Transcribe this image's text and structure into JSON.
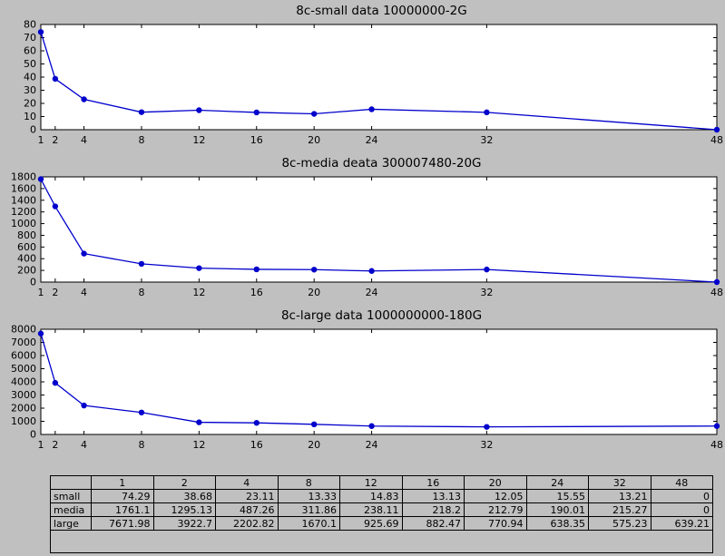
{
  "figure": {
    "bg_color": "#c0c0c0",
    "plot_bg_color": "#ffffff",
    "line_color": "#0000cc",
    "axis_color": "#000000"
  },
  "chart_data": [
    {
      "type": "line",
      "title": "8c-small data 10000000-2G",
      "x": [
        1,
        2,
        4,
        8,
        12,
        16,
        20,
        24,
        32,
        48
      ],
      "values": [
        74.29,
        38.68,
        23.11,
        13.33,
        14.83,
        13.13,
        12.05,
        15.55,
        13.21,
        0
      ],
      "xlim": [
        1,
        48
      ],
      "ylim": [
        0,
        80
      ],
      "ytick_step": 10,
      "xticks": [
        1,
        2,
        4,
        8,
        12,
        16,
        20,
        24,
        32,
        48
      ],
      "grid": false,
      "legend": "none"
    },
    {
      "type": "line",
      "title": "8c-media deata 300007480-20G",
      "x": [
        1,
        2,
        4,
        8,
        12,
        16,
        20,
        24,
        32,
        48
      ],
      "values": [
        1761.1,
        1295.13,
        487.26,
        311.86,
        238.11,
        218.2,
        212.79,
        190.01,
        215.27,
        0
      ],
      "xlim": [
        1,
        48
      ],
      "ylim": [
        0,
        1800
      ],
      "ytick_step": 200,
      "xticks": [
        1,
        2,
        4,
        8,
        12,
        16,
        20,
        24,
        32,
        48
      ],
      "grid": false,
      "legend": "none"
    },
    {
      "type": "line",
      "title": "8c-large data 1000000000-180G",
      "x": [
        1,
        2,
        4,
        8,
        12,
        16,
        20,
        24,
        32,
        48
      ],
      "values": [
        7671.98,
        3922.7,
        2202.82,
        1670.1,
        925.69,
        882.47,
        770.94,
        638.35,
        575.23,
        639.21
      ],
      "xlim": [
        1,
        48
      ],
      "ylim": [
        0,
        8000
      ],
      "ytick_step": 1000,
      "xticks": [
        1,
        2,
        4,
        8,
        12,
        16,
        20,
        24,
        32,
        48
      ],
      "grid": false,
      "legend": "none"
    }
  ],
  "table": {
    "col_headers": [
      "1",
      "2",
      "4",
      "8",
      "12",
      "16",
      "20",
      "24",
      "32",
      "48"
    ],
    "rows": [
      {
        "label": "small",
        "values": [
          "74.29",
          "38.68",
          "23.11",
          "13.33",
          "14.83",
          "13.13",
          "12.05",
          "15.55",
          "13.21",
          "0"
        ]
      },
      {
        "label": "media",
        "values": [
          "1761.1",
          "1295.13",
          "487.26",
          "311.86",
          "238.11",
          "218.2",
          "212.79",
          "190.01",
          "215.27",
          "0"
        ]
      },
      {
        "label": "large",
        "values": [
          "7671.98",
          "3922.7",
          "2202.82",
          "1670.1",
          "925.69",
          "882.47",
          "770.94",
          "638.35",
          "575.23",
          "639.21"
        ]
      }
    ]
  }
}
